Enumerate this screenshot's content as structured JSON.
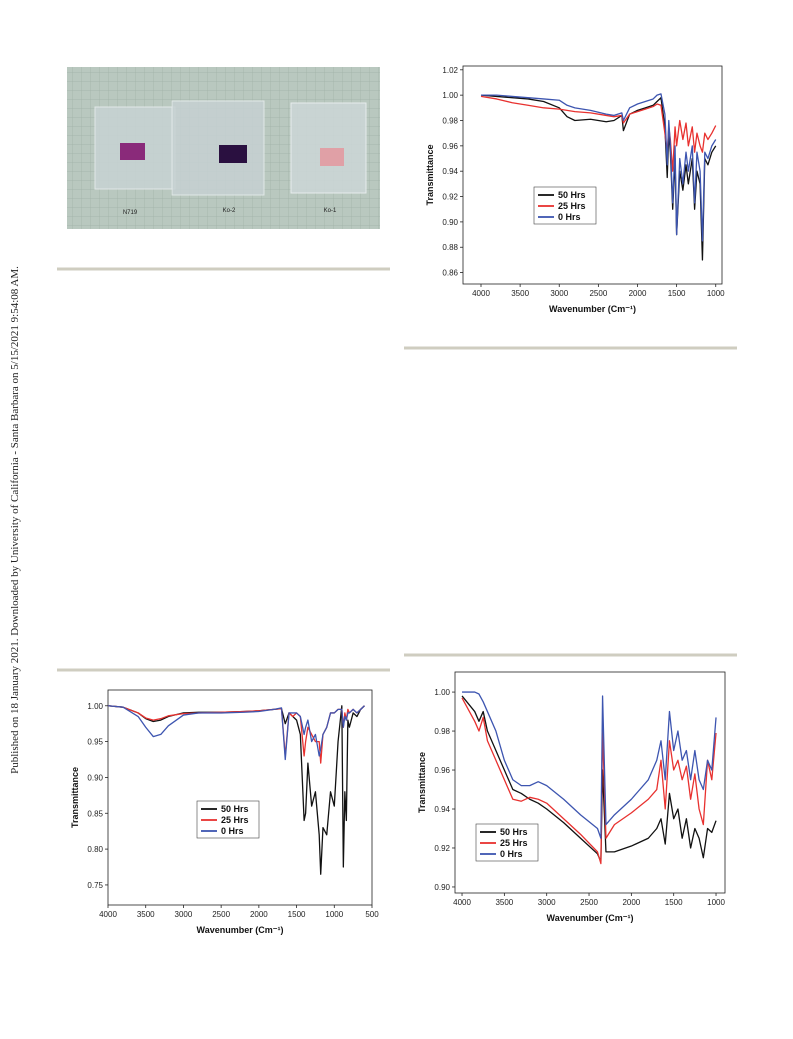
{
  "sidebar": "Published on 18 January 2021. Downloaded by University of California - Santa Barbara on 5/15/2021 9:54:08 AM.",
  "photo": {
    "labels": [
      "N719",
      "Ko-2",
      "Ko-1"
    ]
  },
  "chart_data": [
    {
      "type": "line",
      "xlabel": "Wavenumber (Cm⁻¹)",
      "ylabel": "Transmittance",
      "xlim": [
        4230,
        920
      ],
      "xticks": [
        4000,
        3500,
        3000,
        2500,
        2000,
        1500,
        1000
      ],
      "ylim": [
        0.851,
        1.023
      ],
      "yticks": [
        0.86,
        0.88,
        {
          "value": 0.9,
          "label": "0.90"
        },
        0.92,
        0.94,
        0.96,
        0.98,
        {
          "value": 1,
          "label": "1.00"
        },
        1.02
      ],
      "x": [
        4000,
        3800,
        3600,
        3400,
        3200,
        3000,
        2900,
        2800,
        2600,
        2400,
        2300,
        2200,
        2180,
        2100,
        2000,
        1900,
        1800,
        1750,
        1700,
        1650,
        1620,
        1600,
        1580,
        1550,
        1520,
        1500,
        1460,
        1420,
        1380,
        1350,
        1300,
        1270,
        1240,
        1200,
        1170,
        1140,
        1100,
        1050,
        1000
      ],
      "series": [
        {
          "name": "50 Hrs",
          "color": "#111111",
          "values": [
            1.0,
            0.999,
            0.998,
            0.997,
            0.995,
            0.99,
            0.983,
            0.98,
            0.981,
            0.979,
            0.98,
            0.984,
            0.972,
            0.985,
            0.988,
            0.99,
            0.992,
            0.995,
            0.998,
            0.975,
            0.935,
            0.97,
            0.955,
            0.91,
            0.95,
            0.89,
            0.94,
            0.925,
            0.945,
            0.93,
            0.95,
            0.91,
            0.94,
            0.93,
            0.87,
            0.95,
            0.945,
            0.955,
            0.96
          ]
        },
        {
          "name": "25 Hrs",
          "color": "#e8312f",
          "values": [
            0.999,
            0.997,
            0.994,
            0.992,
            0.99,
            0.989,
            0.988,
            0.987,
            0.986,
            0.984,
            0.983,
            0.984,
            0.978,
            0.985,
            0.987,
            0.989,
            0.991,
            0.993,
            0.992,
            0.97,
            0.955,
            0.975,
            0.965,
            0.94,
            0.975,
            0.96,
            0.98,
            0.965,
            0.978,
            0.96,
            0.975,
            0.955,
            0.97,
            0.96,
            0.955,
            0.97,
            0.965,
            0.97,
            0.976
          ]
        },
        {
          "name": "0 Hrs",
          "color": "#3d55b0",
          "values": [
            1.0,
            1.0,
            0.999,
            0.998,
            0.997,
            0.996,
            0.992,
            0.99,
            0.988,
            0.985,
            0.984,
            0.986,
            0.98,
            0.99,
            0.993,
            0.995,
            0.997,
            1.0,
            1.001,
            0.985,
            0.945,
            0.98,
            0.96,
            0.915,
            0.96,
            0.89,
            0.95,
            0.93,
            0.955,
            0.94,
            0.96,
            0.915,
            0.955,
            0.94,
            0.885,
            0.955,
            0.95,
            0.96,
            0.965
          ]
        }
      ]
    },
    {
      "type": "line",
      "xlabel": "Wavenumber (Cm⁻¹)",
      "ylabel": "Transmittance",
      "xlim": [
        4000,
        500
      ],
      "xticks": [
        4000,
        3500,
        3000,
        2500,
        2000,
        1500,
        1000,
        500
      ],
      "ylim": [
        0.722,
        1.022
      ],
      "yticks": [
        0.75,
        {
          "value": 0.8,
          "label": "0.80"
        },
        0.85,
        {
          "value": 0.9,
          "label": "0.90"
        },
        0.95,
        {
          "value": 1,
          "label": "1.00"
        }
      ],
      "x": [
        4000,
        3800,
        3600,
        3500,
        3400,
        3300,
        3200,
        3000,
        2800,
        2500,
        2200,
        2000,
        1800,
        1700,
        1650,
        1600,
        1550,
        1500,
        1450,
        1400,
        1380,
        1350,
        1300,
        1250,
        1200,
        1180,
        1150,
        1100,
        1050,
        1000,
        950,
        900,
        880,
        860,
        840,
        820,
        800,
        750,
        700,
        650,
        600
      ],
      "series": [
        {
          "name": "50 Hrs",
          "color": "#111111",
          "values": [
            1.0,
            0.998,
            0.99,
            0.982,
            0.978,
            0.98,
            0.985,
            0.99,
            0.991,
            0.991,
            0.992,
            0.993,
            0.995,
            0.996,
            0.975,
            0.99,
            0.985,
            0.98,
            0.96,
            0.84,
            0.85,
            0.92,
            0.86,
            0.88,
            0.82,
            0.765,
            0.83,
            0.82,
            0.88,
            0.86,
            0.95,
            1.0,
            0.775,
            0.88,
            0.84,
            0.98,
            0.97,
            0.99,
            0.985,
            0.995,
            1.0
          ]
        },
        {
          "name": "25 Hrs",
          "color": "#e8312f",
          "values": [
            1.0,
            0.998,
            0.99,
            0.983,
            0.98,
            0.982,
            0.986,
            0.989,
            0.99,
            0.991,
            0.992,
            0.993,
            0.995,
            0.996,
            0.93,
            0.99,
            0.985,
            0.99,
            0.985,
            0.93,
            0.95,
            0.97,
            0.96,
            0.95,
            0.95,
            0.92,
            0.96,
            0.97,
            0.99,
            0.99,
            0.995,
            0.995,
            0.97,
            0.99,
            0.98,
            0.995,
            0.99,
            0.995,
            0.99,
            0.995,
            1.0
          ]
        },
        {
          "name": "0 Hrs",
          "color": "#3d55b0",
          "values": [
            1.0,
            0.998,
            0.985,
            0.97,
            0.957,
            0.96,
            0.972,
            0.987,
            0.99,
            0.99,
            0.991,
            0.992,
            0.995,
            0.997,
            0.925,
            0.99,
            0.99,
            0.99,
            0.985,
            0.96,
            0.97,
            0.98,
            0.95,
            0.96,
            0.93,
            0.94,
            0.96,
            0.97,
            0.99,
            0.99,
            0.995,
            0.995,
            0.97,
            0.985,
            0.98,
            0.99,
            0.99,
            0.995,
            0.99,
            0.995,
            1.0
          ]
        }
      ]
    },
    {
      "type": "line",
      "xlabel": "Wavenumber (Cm⁻¹)",
      "ylabel": "Transmittance",
      "xlim": [
        4083,
        894
      ],
      "xticks": [
        4000,
        3500,
        3000,
        2500,
        2000,
        1500,
        1000
      ],
      "ylim": [
        0.8969,
        1.0103
      ],
      "yticks": [
        {
          "value": 0.9,
          "label": "0.90"
        },
        0.92,
        0.94,
        0.96,
        0.98,
        {
          "value": 1,
          "label": "1.00"
        }
      ],
      "x": [
        4000,
        3850,
        3800,
        3750,
        3700,
        3600,
        3500,
        3400,
        3300,
        3200,
        3100,
        3000,
        2800,
        2600,
        2400,
        2360,
        2340,
        2300,
        2200,
        2000,
        1800,
        1700,
        1650,
        1600,
        1550,
        1500,
        1450,
        1400,
        1350,
        1300,
        1250,
        1200,
        1150,
        1100,
        1050,
        1000
      ],
      "series": [
        {
          "name": "50 Hrs",
          "color": "#111111",
          "values": [
            0.998,
            0.99,
            0.985,
            0.99,
            0.98,
            0.97,
            0.96,
            0.95,
            0.948,
            0.945,
            0.943,
            0.94,
            0.933,
            0.925,
            0.917,
            0.913,
            0.96,
            0.918,
            0.918,
            0.921,
            0.925,
            0.93,
            0.935,
            0.922,
            0.948,
            0.935,
            0.94,
            0.925,
            0.935,
            0.92,
            0.93,
            0.925,
            0.915,
            0.93,
            0.928,
            0.934
          ]
        },
        {
          "name": "25 Hrs",
          "color": "#e8312f",
          "values": [
            0.997,
            0.985,
            0.98,
            0.987,
            0.975,
            0.965,
            0.955,
            0.945,
            0.944,
            0.946,
            0.945,
            0.943,
            0.935,
            0.927,
            0.918,
            0.912,
            0.981,
            0.925,
            0.932,
            0.938,
            0.945,
            0.95,
            0.965,
            0.94,
            0.975,
            0.96,
            0.965,
            0.955,
            0.962,
            0.945,
            0.958,
            0.94,
            0.932,
            0.965,
            0.955,
            0.979
          ]
        },
        {
          "name": "0 Hrs",
          "color": "#3d55b0",
          "values": [
            1.0,
            1.0,
            0.999,
            0.995,
            0.99,
            0.98,
            0.965,
            0.955,
            0.952,
            0.952,
            0.954,
            0.952,
            0.945,
            0.937,
            0.93,
            0.925,
            0.998,
            0.932,
            0.937,
            0.945,
            0.955,
            0.965,
            0.975,
            0.955,
            0.99,
            0.97,
            0.98,
            0.965,
            0.97,
            0.955,
            0.97,
            0.955,
            0.95,
            0.965,
            0.96,
            0.987
          ]
        }
      ]
    }
  ]
}
